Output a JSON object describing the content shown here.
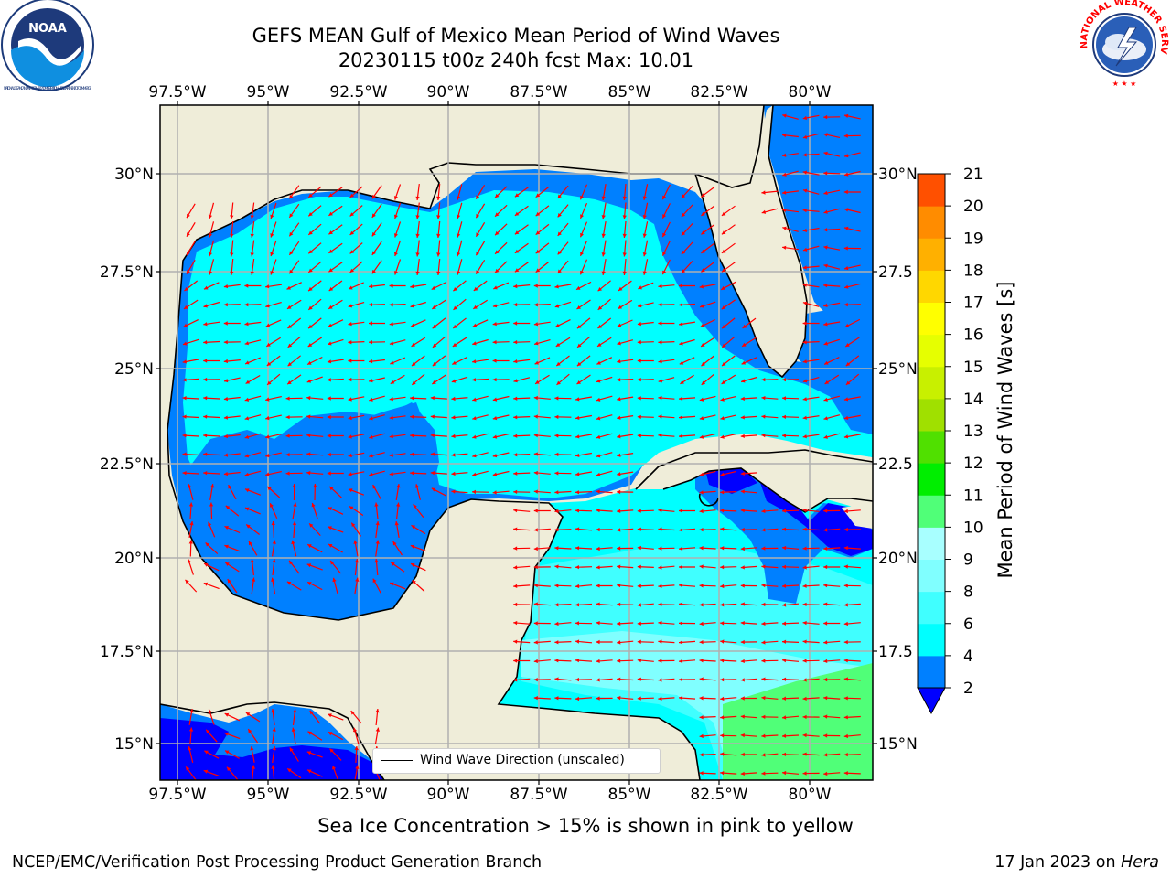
{
  "title": {
    "line1": "GEFS MEAN Gulf of Mexico Mean Period of Wind Waves",
    "line2": "20230115 t00z 240h fcst   Max: 10.01"
  },
  "logos": {
    "left": {
      "name": "noaa-logo",
      "text": "NOAA",
      "ring_text": "NATIONAL OCEANIC AND ATMOSPHERIC ADMINISTRATION • U.S. DEPARTMENT OF COMMERCE"
    },
    "right": {
      "name": "nws-logo",
      "ring_text": "NATIONAL WEATHER SERVICE"
    }
  },
  "map": {
    "lon_labels_top": [
      "97.5°W",
      "95°W",
      "92.5°W",
      "90°W",
      "87.5°W",
      "85°W",
      "82.5°W",
      "80°W"
    ],
    "lon_labels_bottom": [
      "97.5°W",
      "95°W",
      "92.5°W",
      "90°W",
      "87.5°W",
      "85°W",
      "82.5°W",
      "80°W"
    ],
    "lat_labels_left": [
      "30°N",
      "27.5°N",
      "25°N",
      "22.5°N",
      "20°N",
      "17.5°N",
      "15°N"
    ],
    "lat_labels_right": [
      "30°N",
      "27.5",
      "25°N",
      "22.5",
      "20°N",
      "17.5",
      "15°N"
    ],
    "land_color": "#efedd9",
    "grid_color": "#b0b0b0",
    "arrow_color": "#ff0000",
    "legend_text": "Wind Wave Direction (unscaled)"
  },
  "colorbar": {
    "label": "Mean Period of Wind Waves [s]",
    "ticks": [
      "2",
      "4",
      "6",
      "8",
      "9",
      "10",
      "11",
      "12",
      "13",
      "14",
      "15",
      "16",
      "17",
      "18",
      "19",
      "20",
      "21"
    ],
    "under_color": "#0000ff",
    "colors": [
      "#0080ff",
      "#00ffff",
      "#40ffff",
      "#80ffff",
      "#a8ffff",
      "#50ff78",
      "#00ee00",
      "#50e000",
      "#a0e000",
      "#c8f000",
      "#e6ff00",
      "#ffff00",
      "#ffd700",
      "#ffb000",
      "#ff8c00",
      "#ff5000",
      "#ff1e00",
      "#ff0000"
    ]
  },
  "sea_ice_note": "Sea Ice Concentration > 15% is shown in pink to yellow",
  "footer": {
    "left": "NCEP/EMC/Verification Post Processing Product Generation Branch",
    "right_date": "17 Jan 2023 on",
    "right_host": "Hera"
  }
}
